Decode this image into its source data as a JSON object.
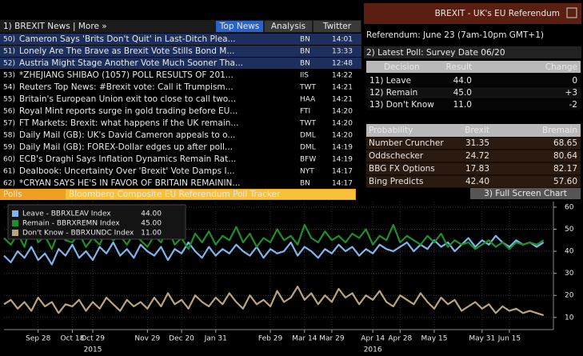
{
  "news": {
    "header": "1) BREXIT News | More »",
    "tabs": [
      "Top News",
      "Analysis",
      "Twitter"
    ],
    "rows": [
      {
        "num": "50)",
        "headline": "Cameron Says 'Brits Don't Quit' in Last-Ditch Plea...",
        "source": "BN",
        "time": "14:01"
      },
      {
        "num": "51)",
        "headline": "Lonely Are The Brave as Brexit Vote Stills Bond M...",
        "source": "BN",
        "time": "13:33"
      },
      {
        "num": "52)",
        "headline": "Austria Might Stage Another Vote Much Sooner Tha...",
        "source": "BN",
        "time": "12:48"
      },
      {
        "num": "53)",
        "headline": "*ZHEJIANG SHIBAO (1057) POLL RESULTS OF 201...",
        "source": "IIS",
        "time": "14:22"
      },
      {
        "num": "54)",
        "headline": "Reuters Top News: #Brexit vote: Call it Trumpism...",
        "source": "TWT",
        "time": "14:21"
      },
      {
        "num": "55)",
        "headline": "Britain's European Union exit too close to call two...",
        "source": "HAA",
        "time": "14:21"
      },
      {
        "num": "56)",
        "headline": "Royal Mint reports surge in gold trading before EU...",
        "source": "FTI",
        "time": "14:20"
      },
      {
        "num": "57)",
        "headline": "FT Markets: Brexit: what happens if the UK remain...",
        "source": "TWT",
        "time": "14:20"
      },
      {
        "num": "58)",
        "headline": "Daily Mail (GB): UK's David Cameron appeals to o...",
        "source": "DML",
        "time": "14:20"
      },
      {
        "num": "59)",
        "headline": "Daily Mail (GB): FOREX-Dollar edges up after poll...",
        "source": "DML",
        "time": "14:19"
      },
      {
        "num": "60)",
        "headline": "ECB's Draghi Says Inflation Dynamics Remain Rat...",
        "source": "BFW",
        "time": "14:19"
      },
      {
        "num": "61)",
        "headline": "Dealbook: Uncertainty Over 'Brexit' Vote Damps I...",
        "source": "NYT",
        "time": "14:17"
      },
      {
        "num": "62)",
        "headline": "*CRYAN SAYS HE'S IN FAVOR OF BRITAIN REMAININ...",
        "source": "BN",
        "time": "14:17"
      }
    ]
  },
  "panel": {
    "title": "BREXIT - UK's EU Referendum",
    "referendum": "Referendum: June 23 (7am-10pm GMT+1)",
    "latest_poll": "2) Latest Poll: Survey Date 06/20",
    "poll_table": {
      "header": [
        "Decision",
        "Result",
        "Change"
      ],
      "rows": [
        [
          "11) Leave",
          "44.0",
          "0"
        ],
        [
          "12) Remain",
          "45.0",
          "+3"
        ],
        [
          "13) Don't Know",
          "11.0",
          "-2"
        ]
      ]
    },
    "prob_table": {
      "header": [
        "Probability",
        "Brexit",
        "Bremain"
      ],
      "rows": [
        [
          "Number Cruncher",
          "31.35",
          "68.65"
        ],
        [
          "Oddschecker",
          "24.72",
          "80.64"
        ],
        [
          "BBG FX Options",
          "17.83",
          "82.17"
        ],
        [
          "Bing Predicts",
          "42.40",
          "57.60"
        ]
      ]
    },
    "button": "3) Full Screen Chart"
  },
  "toolbar": {
    "field": "Polls",
    "title": "Bloomberg Composite EU Referendum Poll Tracker"
  },
  "chart_data": {
    "type": "line",
    "categories": [
      null,
      null,
      null,
      null,
      null,
      "Sep 28",
      null,
      null,
      null,
      null,
      "Oct 18",
      null,
      null,
      "Oct 29",
      null,
      null,
      null,
      null,
      null,
      null,
      null,
      "Nov 29",
      null,
      null,
      null,
      null,
      "Dec 20",
      null,
      null,
      null,
      null,
      "Jan 31",
      null,
      null,
      null,
      null,
      null,
      null,
      null,
      "Feb 29",
      null,
      null,
      null,
      null,
      "Mar 14",
      null,
      null,
      null,
      "Mar 29",
      null,
      null,
      null,
      null,
      null,
      "Apr 14",
      null,
      null,
      null,
      "Apr 28",
      null,
      null,
      null,
      null,
      "May 15",
      null,
      null,
      null,
      null,
      null,
      null,
      "May 31",
      null,
      null,
      null,
      "Jun 15",
      null,
      null,
      null,
      null,
      null
    ],
    "years": [
      {
        "value": 13,
        "label": "2015"
      },
      {
        "value": 54,
        "label": "2016"
      }
    ],
    "series": [
      {
        "name": "Leave - BBRXLEAV Index",
        "legend_value": "44.00",
        "color": "#7fb4ec",
        "values": [
          38,
          35,
          40,
          37,
          42,
          36,
          39,
          34,
          41,
          38,
          43,
          37,
          40,
          36,
          42,
          39,
          44,
          38,
          41,
          37,
          43,
          40,
          38,
          42,
          36,
          41,
          39,
          44,
          40,
          37,
          42,
          38,
          41,
          39,
          43,
          40,
          38,
          42,
          37,
          41,
          39,
          40,
          44,
          38,
          42,
          40,
          37,
          41,
          39,
          43,
          40,
          42,
          38,
          41,
          39,
          43,
          41,
          40,
          42,
          44,
          40,
          43,
          41,
          45,
          42,
          44,
          40,
          43,
          46,
          42,
          45,
          43,
          47,
          44,
          42,
          45,
          43,
          44,
          42,
          44
        ]
      },
      {
        "name": "Remain - BBRXREMN Index",
        "legend_value": "45.00",
        "color": "#1f8f2c",
        "values": [
          46,
          43,
          48,
          42,
          53,
          44,
          47,
          41,
          49,
          45,
          44,
          48,
          42,
          46,
          43,
          50,
          45,
          47,
          43,
          48,
          45,
          42,
          47,
          44,
          50,
          43,
          46,
          41,
          48,
          44,
          49,
          43,
          47,
          45,
          51,
          44,
          48,
          42,
          46,
          44,
          50,
          45,
          47,
          43,
          52,
          46,
          44,
          49,
          45,
          47,
          44,
          48,
          46,
          50,
          43,
          47,
          45,
          52,
          44,
          47,
          45,
          43,
          47,
          44,
          48,
          42,
          45,
          43,
          44,
          41,
          43,
          45,
          42,
          44,
          41,
          44,
          43,
          44,
          43,
          45
        ]
      },
      {
        "name": "Don't Know - BBRXUNDC Index",
        "legend_value": "11.00",
        "color": "#b9a47c",
        "values": [
          16,
          18,
          14,
          17,
          13,
          19,
          15,
          17,
          12,
          16,
          15,
          18,
          13,
          17,
          14,
          19,
          16,
          13,
          18,
          15,
          17,
          14,
          19,
          15,
          21,
          16,
          18,
          14,
          20,
          17,
          15,
          19,
          16,
          21,
          17,
          14,
          20,
          16,
          18,
          15,
          22,
          17,
          19,
          24,
          18,
          21,
          16,
          20,
          17,
          23,
          19,
          21,
          16,
          20,
          18,
          22,
          17,
          15,
          20,
          18,
          16,
          21,
          17,
          14,
          19,
          16,
          18,
          13,
          15,
          17,
          14,
          16,
          12,
          15,
          13,
          14,
          12,
          13,
          12,
          11
        ]
      }
    ],
    "ylim": [
      4.5,
      62.5
    ],
    "yticks": [
      10,
      20,
      30,
      40,
      50,
      60
    ],
    "grid": true,
    "legend": "top-left"
  }
}
